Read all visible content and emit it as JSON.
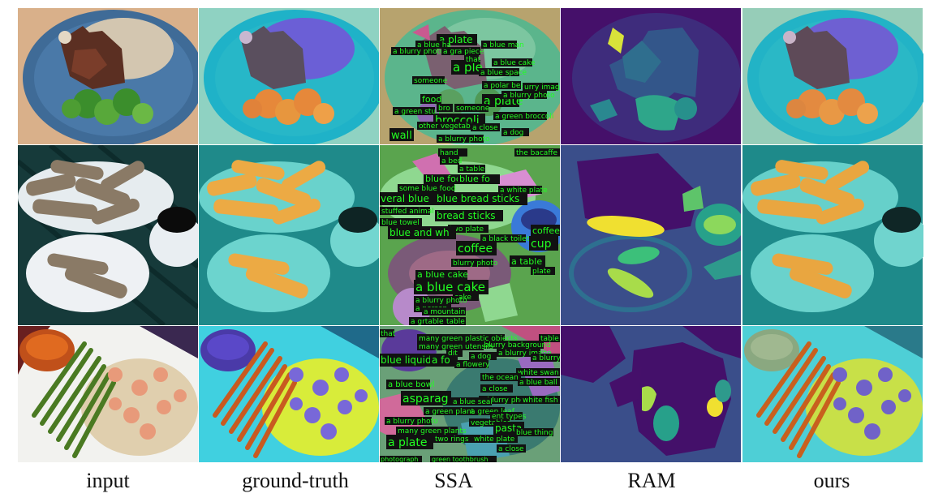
{
  "figure": {
    "columns": [
      "input",
      "ground-truth",
      "SSA",
      "RAM",
      "ours"
    ]
  },
  "ssa_labels": {
    "row1": [
      "a plate",
      "a blue man",
      "a blurry photo",
      "a ple",
      "a blue space",
      "a blue cake",
      "a gra piece",
      "a blue ha",
      "that",
      "someone",
      "a polar bear",
      "urry image",
      "food",
      "a plate",
      "a blurry photo",
      "a green stuff",
      "bro",
      "someone",
      "a green broccoli",
      "broccoli",
      "other vegetables",
      "a dog",
      "wall",
      "a close",
      "a blurry photo"
    ],
    "row2": [
      "hand",
      "the bacaffe",
      "a bed",
      "a table",
      "blue food",
      "blue fo",
      "some blue food",
      "veral blue",
      "blue bread sticks",
      "a white plate",
      "stuffed animal",
      "bread sticks",
      "blue towel",
      "two plate",
      "a black toilet",
      "blue and wh",
      "coffee",
      "coffee",
      "cup",
      "a table",
      "plate",
      "blurry photo",
      "a blue cake",
      "a blue cake",
      "cake",
      "a blurry photo",
      "a person",
      "a mountain",
      "a grtable",
      "table"
    ],
    "row3": [
      "that",
      "many green plastic objects",
      "table",
      "blue liquid",
      "a fo",
      "a blurry background",
      "many green utensils",
      "a dog",
      "a flowery",
      "dit",
      "a blurry image",
      "a blurry",
      "a blue bowl",
      "white swan",
      "the ocean",
      "a blue ball",
      "a close",
      "a blurry photo",
      "white fish",
      "asparag",
      "a blue seal",
      "a green leaf",
      "a green plant",
      "ent types",
      "a blurry photo",
      "vegetables",
      "pasta",
      "many green plants",
      "a plate",
      "two rings",
      "white plate",
      "a close",
      "blue thing",
      "photograph",
      "green toothbrush"
    ]
  }
}
